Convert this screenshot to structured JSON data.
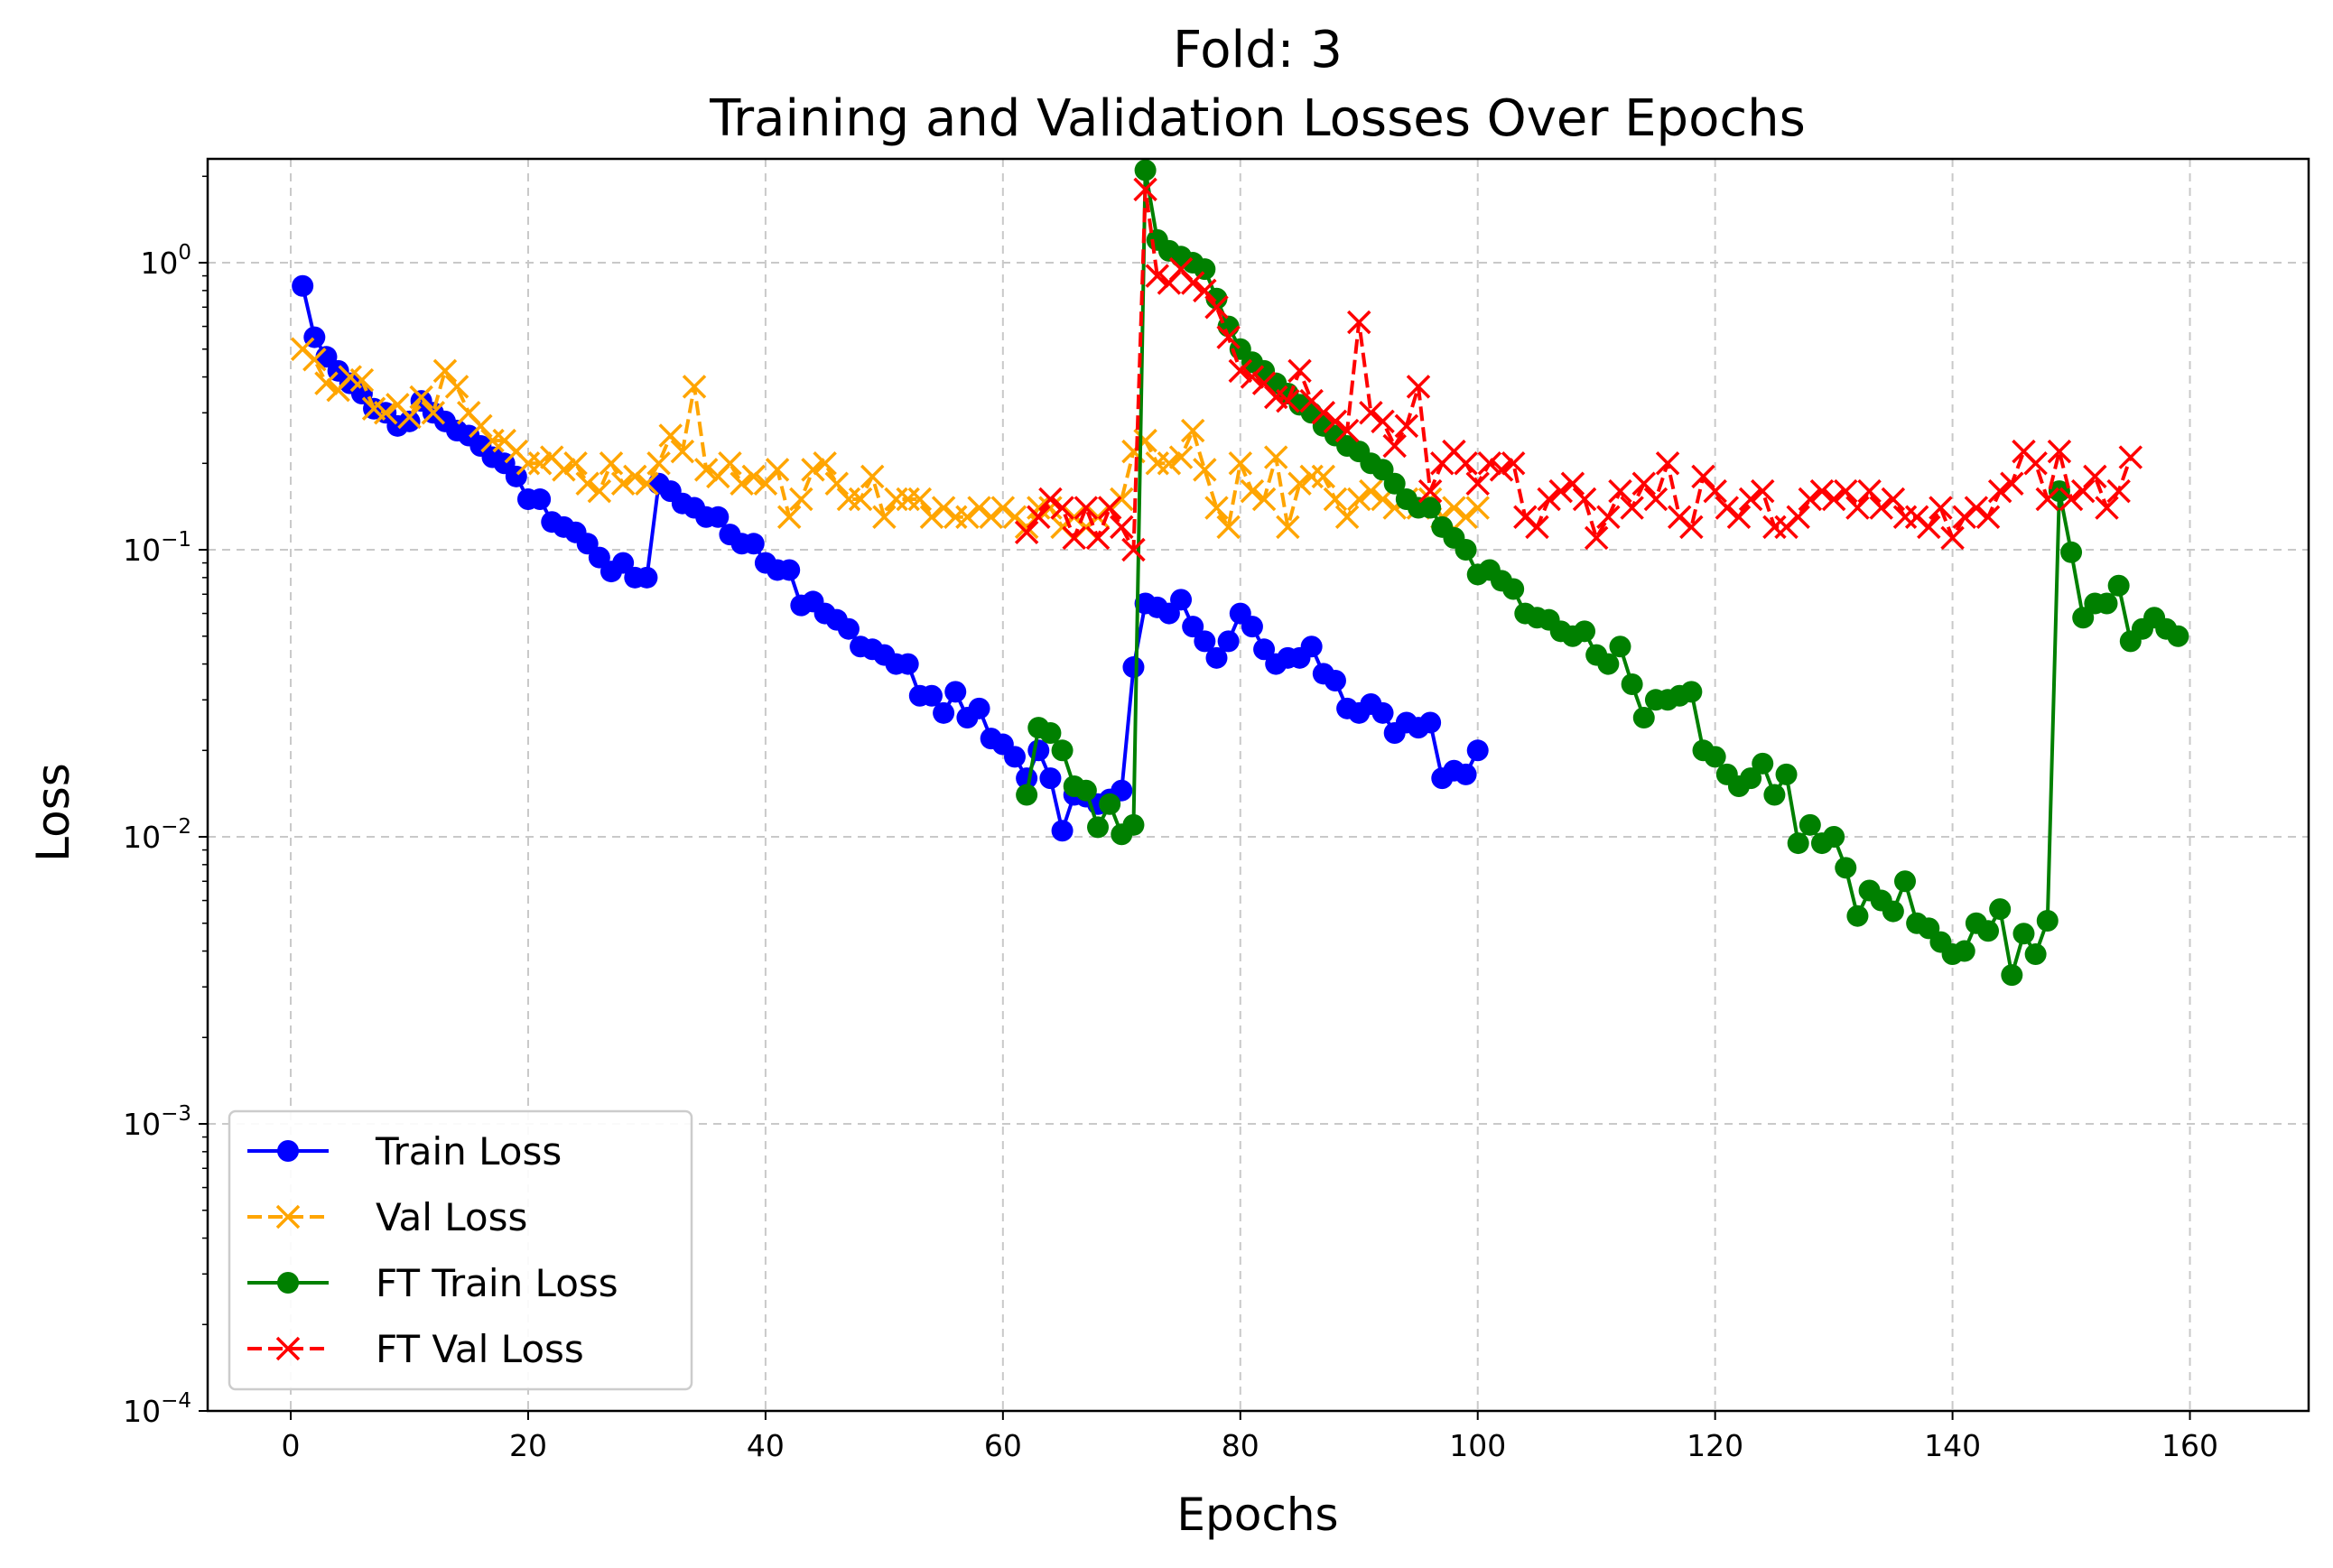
{
  "chart_data": {
    "type": "line",
    "title_line1": "Fold: 3",
    "title_line2": "Training and Validation Losses Over Epochs",
    "xlabel": "Epochs",
    "ylabel": "Loss",
    "xlim": [
      -7,
      170
    ],
    "ylim": [
      0.0001,
      2.3
    ],
    "yscale": "log",
    "grid": true,
    "legend_position": "lower-left",
    "x_ticks": [
      0,
      20,
      40,
      60,
      80,
      100,
      120,
      140,
      160
    ],
    "x_tick_labels": [
      "0",
      "20",
      "40",
      "60",
      "80",
      "100",
      "120",
      "140",
      "160"
    ],
    "y_ticks": [
      {
        "value": 1,
        "base": "10",
        "exp": "0"
      },
      {
        "value": 0.1,
        "base": "10",
        "exp": "−1"
      },
      {
        "value": 0.01,
        "base": "10",
        "exp": "−2"
      },
      {
        "value": 0.001,
        "base": "10",
        "exp": "−3"
      },
      {
        "value": 0.0001,
        "base": "10",
        "exp": "−4"
      }
    ],
    "series": [
      {
        "name": "Train Loss",
        "color": "#0000ff",
        "marker": "circle",
        "line_style": "solid",
        "x_start": 1,
        "values": [
          0.83,
          0.55,
          0.47,
          0.42,
          0.38,
          0.35,
          0.31,
          0.3,
          0.27,
          0.28,
          0.33,
          0.3,
          0.28,
          0.26,
          0.25,
          0.23,
          0.21,
          0.2,
          0.18,
          0.15,
          0.15,
          0.125,
          0.12,
          0.115,
          0.105,
          0.094,
          0.084,
          0.09,
          0.08,
          0.08,
          0.17,
          0.16,
          0.145,
          0.14,
          0.13,
          0.13,
          0.113,
          0.105,
          0.105,
          0.09,
          0.085,
          0.085,
          0.064,
          0.066,
          0.06,
          0.057,
          0.053,
          0.046,
          0.045,
          0.043,
          0.04,
          0.04,
          0.031,
          0.031,
          0.027,
          0.032,
          0.026,
          0.028,
          0.022,
          0.021,
          0.019,
          0.016,
          0.02,
          0.016,
          0.0105,
          0.014,
          0.0138,
          0.013,
          0.0135,
          0.0145,
          0.039,
          0.065,
          0.063,
          0.06,
          0.067,
          0.054,
          0.048,
          0.042,
          0.048,
          0.06,
          0.054,
          0.045,
          0.04,
          0.042,
          0.042,
          0.046,
          0.037,
          0.035,
          0.028,
          0.027,
          0.029,
          0.027,
          0.023,
          0.025,
          0.024,
          0.025,
          0.016,
          0.017,
          0.0165,
          0.02
        ]
      },
      {
        "name": "Val Loss",
        "color": "#ffa500",
        "marker": "x",
        "line_style": "dashed",
        "x_start": 1,
        "values": [
          0.5,
          0.46,
          0.38,
          0.36,
          0.4,
          0.39,
          0.31,
          0.3,
          0.32,
          0.29,
          0.34,
          0.3,
          0.42,
          0.37,
          0.3,
          0.27,
          0.24,
          0.24,
          0.22,
          0.2,
          0.2,
          0.21,
          0.19,
          0.2,
          0.17,
          0.16,
          0.2,
          0.17,
          0.18,
          0.17,
          0.2,
          0.25,
          0.22,
          0.37,
          0.19,
          0.18,
          0.2,
          0.17,
          0.18,
          0.17,
          0.19,
          0.13,
          0.15,
          0.19,
          0.2,
          0.17,
          0.15,
          0.15,
          0.18,
          0.13,
          0.15,
          0.15,
          0.15,
          0.13,
          0.14,
          0.13,
          0.13,
          0.14,
          0.13,
          0.14,
          0.13,
          0.12,
          0.14,
          0.14,
          0.12,
          0.13,
          0.12,
          0.13,
          0.14,
          0.15,
          0.22,
          0.24,
          0.2,
          0.2,
          0.21,
          0.26,
          0.19,
          0.14,
          0.12,
          0.2,
          0.16,
          0.15,
          0.21,
          0.12,
          0.17,
          0.18,
          0.18,
          0.15,
          0.13,
          0.15,
          0.16,
          0.15,
          0.14,
          0.15,
          0.14,
          0.15,
          0.13,
          0.14,
          0.13,
          0.14
        ]
      },
      {
        "name": "FT Train Loss",
        "color": "#008000",
        "marker": "circle",
        "line_style": "solid",
        "x_start": 62,
        "values": [
          0.014,
          0.024,
          0.023,
          0.02,
          0.015,
          0.0145,
          0.0108,
          0.013,
          0.0102,
          0.011,
          2.1,
          1.2,
          1.1,
          1.05,
          1.0,
          0.95,
          0.75,
          0.6,
          0.5,
          0.45,
          0.42,
          0.38,
          0.35,
          0.32,
          0.3,
          0.27,
          0.25,
          0.23,
          0.22,
          0.2,
          0.19,
          0.17,
          0.15,
          0.14,
          0.14,
          0.12,
          0.11,
          0.1,
          0.082,
          0.085,
          0.078,
          0.073,
          0.06,
          0.058,
          0.057,
          0.052,
          0.05,
          0.052,
          0.043,
          0.04,
          0.046,
          0.034,
          0.026,
          0.03,
          0.03,
          0.031,
          0.032,
          0.02,
          0.019,
          0.0165,
          0.015,
          0.016,
          0.018,
          0.014,
          0.0165,
          0.0095,
          0.011,
          0.0095,
          0.01,
          0.0078,
          0.0053,
          0.0065,
          0.006,
          0.0055,
          0.007,
          0.005,
          0.0048,
          0.0043,
          0.0039,
          0.004,
          0.005,
          0.0047,
          0.0056,
          0.0033,
          0.0046,
          0.0039,
          0.0051,
          0.16,
          0.098,
          0.058,
          0.065,
          0.065,
          0.075,
          0.048,
          0.053,
          0.058,
          0.053,
          0.05
        ]
      },
      {
        "name": "FT Val Loss",
        "color": "#ff0000",
        "marker": "x",
        "line_style": "dashed",
        "x_start": 62,
        "values": [
          0.115,
          0.13,
          0.15,
          0.14,
          0.11,
          0.14,
          0.11,
          0.14,
          0.12,
          0.1,
          1.8,
          0.9,
          0.85,
          0.95,
          0.85,
          0.8,
          0.7,
          0.55,
          0.42,
          0.4,
          0.38,
          0.34,
          0.33,
          0.42,
          0.33,
          0.3,
          0.28,
          0.26,
          0.62,
          0.3,
          0.28,
          0.23,
          0.27,
          0.37,
          0.16,
          0.2,
          0.22,
          0.2,
          0.17,
          0.2,
          0.19,
          0.2,
          0.13,
          0.12,
          0.15,
          0.16,
          0.17,
          0.15,
          0.11,
          0.13,
          0.16,
          0.14,
          0.17,
          0.15,
          0.2,
          0.13,
          0.12,
          0.18,
          0.16,
          0.14,
          0.13,
          0.15,
          0.16,
          0.12,
          0.12,
          0.13,
          0.15,
          0.16,
          0.15,
          0.16,
          0.14,
          0.16,
          0.14,
          0.15,
          0.13,
          0.13,
          0.12,
          0.14,
          0.11,
          0.13,
          0.14,
          0.13,
          0.16,
          0.17,
          0.22,
          0.2,
          0.15,
          0.22,
          0.15,
          0.16,
          0.18,
          0.14,
          0.16,
          0.21
        ]
      }
    ]
  }
}
